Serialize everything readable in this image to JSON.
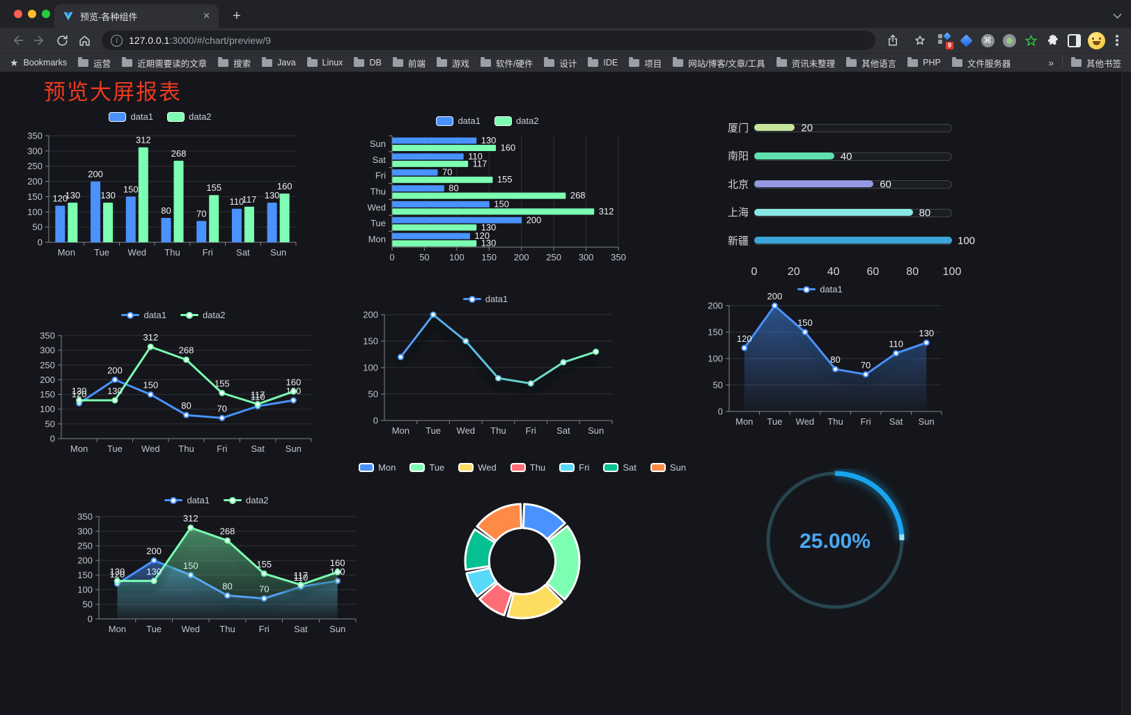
{
  "browser": {
    "tab": {
      "title": "预览-各种组件",
      "close_glyph": "✕"
    },
    "new_tab_label": "+",
    "address": {
      "host": "127.0.0.1",
      "path": ":3000/#/chart/preview/9"
    },
    "extension_badge": "9",
    "bookmarks_bar": {
      "label": "Bookmarks",
      "folders": [
        "运营",
        "近期需要读的文章",
        "搜索",
        "Java",
        "Linux",
        "DB",
        "前端",
        "游戏",
        "软件/硬件",
        "设计",
        "IDE",
        "项目",
        "网站/博客/文章/工具",
        "资讯未整理",
        "其他语言",
        "PHP",
        "文件服务器"
      ],
      "overflow": "»",
      "other": "其他书签"
    }
  },
  "page": {
    "title": "预览大屏报表",
    "title_color": "#ee3a20"
  },
  "colors": {
    "series1": "#4992ff",
    "series2": "#7cffb2",
    "background": "#15161b"
  },
  "chart_data": [
    {
      "id": "bar1",
      "type": "bar",
      "categories": [
        "Mon",
        "Tue",
        "Wed",
        "Thu",
        "Fri",
        "Sat",
        "Sun"
      ],
      "series": [
        {
          "name": "data1",
          "color": "#4992ff",
          "values": [
            120,
            200,
            150,
            80,
            70,
            110,
            130
          ]
        },
        {
          "name": "data2",
          "color": "#7cffb2",
          "values": [
            130,
            130,
            312,
            268,
            155,
            117,
            160
          ]
        }
      ],
      "ylim": [
        0,
        350
      ],
      "ytick": 50,
      "legend_position": "top",
      "grid": true
    },
    {
      "id": "hbar1",
      "type": "bar-horizontal",
      "categories": [
        "Mon",
        "Tue",
        "Wed",
        "Thu",
        "Fri",
        "Sat",
        "Sun"
      ],
      "category_order": "bottom-to-top",
      "series": [
        {
          "name": "data1",
          "color": "#4992ff",
          "values": [
            120,
            200,
            150,
            80,
            70,
            110,
            130
          ]
        },
        {
          "name": "data2",
          "color": "#7cffb2",
          "values": [
            130,
            130,
            312,
            268,
            155,
            117,
            160
          ]
        }
      ],
      "xlim": [
        0,
        350
      ],
      "xtick": 50,
      "legend_position": "top",
      "grid": true
    },
    {
      "id": "progress1",
      "type": "bar-horizontal-progress",
      "items": [
        {
          "label": "厦门",
          "value": 20,
          "color": "#c7e59a"
        },
        {
          "label": "南阳",
          "value": 40,
          "color": "#5ee0ae"
        },
        {
          "label": "北京",
          "value": 60,
          "color": "#9599e2"
        },
        {
          "label": "上海",
          "value": 80,
          "color": "#8ae6e4"
        },
        {
          "label": "新疆",
          "value": 100,
          "color": "#3ca5da"
        }
      ],
      "xticks": [
        0,
        20,
        40,
        60,
        80,
        100
      ],
      "xlim": [
        0,
        100
      ]
    },
    {
      "id": "line1",
      "type": "line",
      "categories": [
        "Mon",
        "Tue",
        "Wed",
        "Thu",
        "Fri",
        "Sat",
        "Sun"
      ],
      "series": [
        {
          "name": "data1",
          "color": "#4992ff",
          "values": [
            120,
            200,
            150,
            80,
            70,
            110,
            130
          ]
        },
        {
          "name": "data2",
          "color": "#7cffb2",
          "values": [
            130,
            130,
            312,
            268,
            155,
            117,
            160
          ]
        }
      ],
      "ylim": [
        0,
        350
      ],
      "ytick": 50,
      "point_labels": true,
      "legend_position": "top"
    },
    {
      "id": "line2",
      "type": "line",
      "categories": [
        "Mon",
        "Tue",
        "Wed",
        "Thu",
        "Fri",
        "Sat",
        "Sun"
      ],
      "series": [
        {
          "name": "data1",
          "gradient": [
            "#4992ff",
            "#7cffb2"
          ],
          "values": [
            120,
            200,
            150,
            80,
            70,
            110,
            130
          ]
        }
      ],
      "ylim": [
        0,
        200
      ],
      "ytick": 50,
      "point_labels": false,
      "shadow": true,
      "legend_position": "top"
    },
    {
      "id": "area1",
      "type": "area",
      "categories": [
        "Mon",
        "Tue",
        "Wed",
        "Thu",
        "Fri",
        "Sat",
        "Sun"
      ],
      "series": [
        {
          "name": "data1",
          "color": "#4992ff",
          "values": [
            120,
            200,
            150,
            80,
            70,
            110,
            130
          ]
        }
      ],
      "ylim": [
        0,
        200
      ],
      "ytick": 50,
      "point_labels": true,
      "shadow": true,
      "legend_position": "top"
    },
    {
      "id": "area2",
      "type": "area",
      "categories": [
        "Mon",
        "Tue",
        "Wed",
        "Thu",
        "Fri",
        "Sat",
        "Sun"
      ],
      "series": [
        {
          "name": "data1",
          "color": "#4992ff",
          "values": [
            120,
            200,
            150,
            80,
            70,
            110,
            130
          ]
        },
        {
          "name": "data2",
          "color": "#7cffb2",
          "values": [
            130,
            130,
            312,
            268,
            155,
            117,
            160
          ]
        }
      ],
      "ylim": [
        0,
        350
      ],
      "ytick": 50,
      "point_labels": true,
      "shadow": true,
      "legend_position": "top"
    },
    {
      "id": "pie1",
      "type": "pie",
      "labels": [
        "Mon",
        "Tue",
        "Wed",
        "Thu",
        "Fri",
        "Sat",
        "Sun"
      ],
      "values": [
        120,
        200,
        150,
        80,
        70,
        110,
        130
      ],
      "colors": [
        "#4992ff",
        "#7cffb2",
        "#fddd60",
        "#ff6e76",
        "#58d9f9",
        "#05c091",
        "#ff8a45"
      ],
      "inner_radius_ratio": 0.58,
      "start_angle": "top",
      "direction": "clockwise",
      "legend_position": "top"
    },
    {
      "id": "gauge1",
      "type": "gauge",
      "value": 25,
      "text": "25.00%",
      "color": "#18a5ee",
      "track_color": "#26454f",
      "text_color": "#49a9f2"
    }
  ]
}
